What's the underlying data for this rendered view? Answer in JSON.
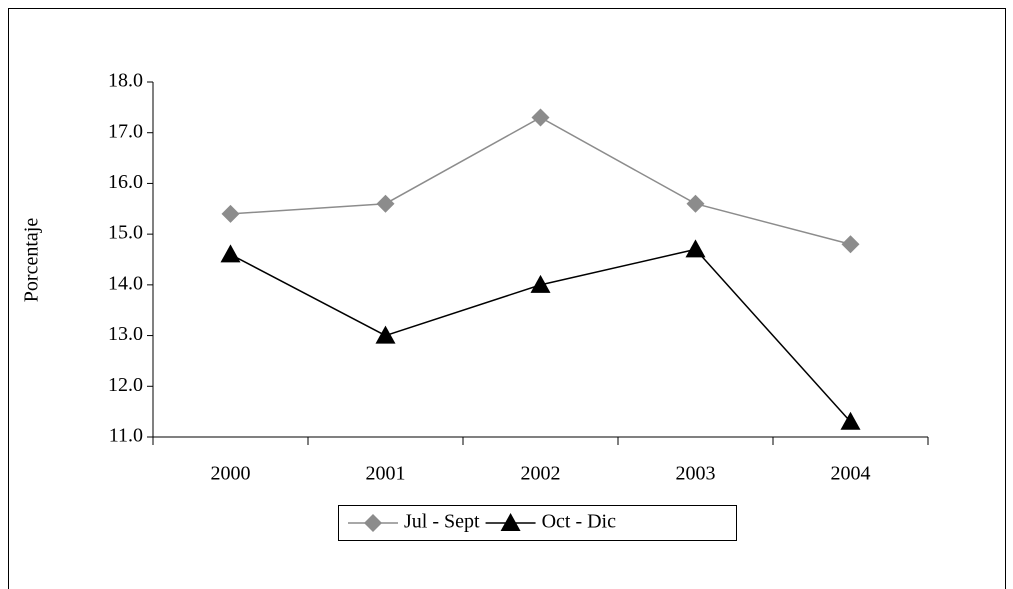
{
  "chart_data": {
    "type": "line",
    "y_label": "Porcentaje",
    "categories": [
      "2000",
      "2001",
      "2002",
      "2003",
      "2004"
    ],
    "series": [
      {
        "name": "Jul - Sept",
        "color": "#8c8c8c",
        "marker": "diamond",
        "values": [
          15.4,
          15.6,
          17.3,
          15.6,
          14.8
        ]
      },
      {
        "name": "Oct - Dic",
        "color": "#000000",
        "marker": "triangle",
        "values": [
          14.6,
          13.0,
          14.0,
          14.7,
          11.3
        ]
      }
    ],
    "ylim": [
      11,
      18
    ],
    "yticks": [
      {
        "value": 11,
        "label": "11.0"
      },
      {
        "value": 12,
        "label": "12.0"
      },
      {
        "value": 13,
        "label": "13.0"
      },
      {
        "value": 14,
        "label": "14.0"
      },
      {
        "value": 15,
        "label": "15.0"
      },
      {
        "value": 16,
        "label": "16.0"
      },
      {
        "value": 17,
        "label": "17.0"
      },
      {
        "value": 18,
        "label": "18.0"
      }
    ],
    "grid": false,
    "legend": "bottom"
  }
}
